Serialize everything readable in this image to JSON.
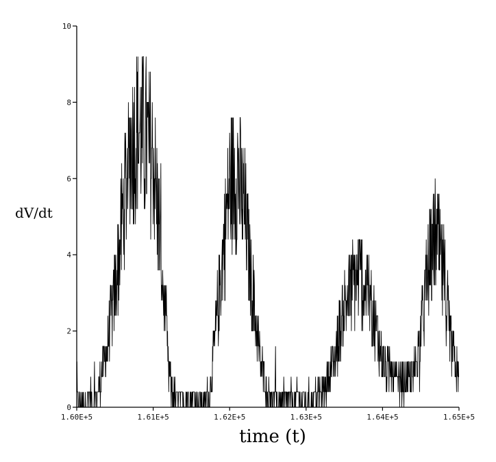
{
  "chart_data": {
    "type": "line",
    "title": "",
    "xlabel": "time  (t)",
    "ylabel": "dV/dt",
    "xlim": [
      160000,
      165000
    ],
    "ylim": [
      0,
      10
    ],
    "grid": false,
    "x_tick_labels": [
      "1.60E+5",
      "1.61E+5",
      "1.62E+5",
      "1.63E+5",
      "1.64E+5",
      "1.65E+5"
    ],
    "y_tick_labels": [
      "0",
      "2",
      "4",
      "6",
      "8",
      "10"
    ],
    "x_ticks": [
      160000,
      161000,
      162000,
      163000,
      164000,
      165000
    ],
    "y_ticks": [
      0,
      2,
      4,
      6,
      8,
      10
    ],
    "series": [
      {
        "color": "#000000",
        "description_points": "approximate envelope of noisy signal",
        "x": [
          160000,
          160250,
          160300,
          160400,
          160500,
          160600,
          160700,
          160800,
          160900,
          161000,
          161100,
          161150,
          161200,
          161250,
          161300,
          161500,
          161700,
          161750,
          161800,
          161900,
          162000,
          162100,
          162200,
          162300,
          162400,
          162500,
          162600,
          162800,
          163000,
          163200,
          163300,
          163400,
          163500,
          163600,
          163700,
          163800,
          163900,
          164000,
          164200,
          164300,
          164400,
          164500,
          164600,
          164700,
          164800,
          164900,
          165000
        ],
        "y": [
          0.2,
          0.2,
          0.6,
          1.6,
          3.0,
          5.0,
          6.8,
          7.3,
          7.0,
          6.5,
          4.2,
          2.5,
          1.0,
          0.4,
          0.2,
          0.2,
          0.2,
          0.6,
          1.6,
          3.8,
          5.8,
          6.2,
          5.0,
          3.0,
          1.2,
          0.4,
          0.2,
          0.2,
          0.2,
          0.3,
          0.8,
          1.6,
          2.6,
          3.2,
          3.5,
          3.0,
          2.2,
          1.2,
          0.6,
          0.6,
          0.8,
          2.0,
          3.6,
          4.5,
          3.4,
          1.6,
          0.6
        ]
      }
    ]
  }
}
